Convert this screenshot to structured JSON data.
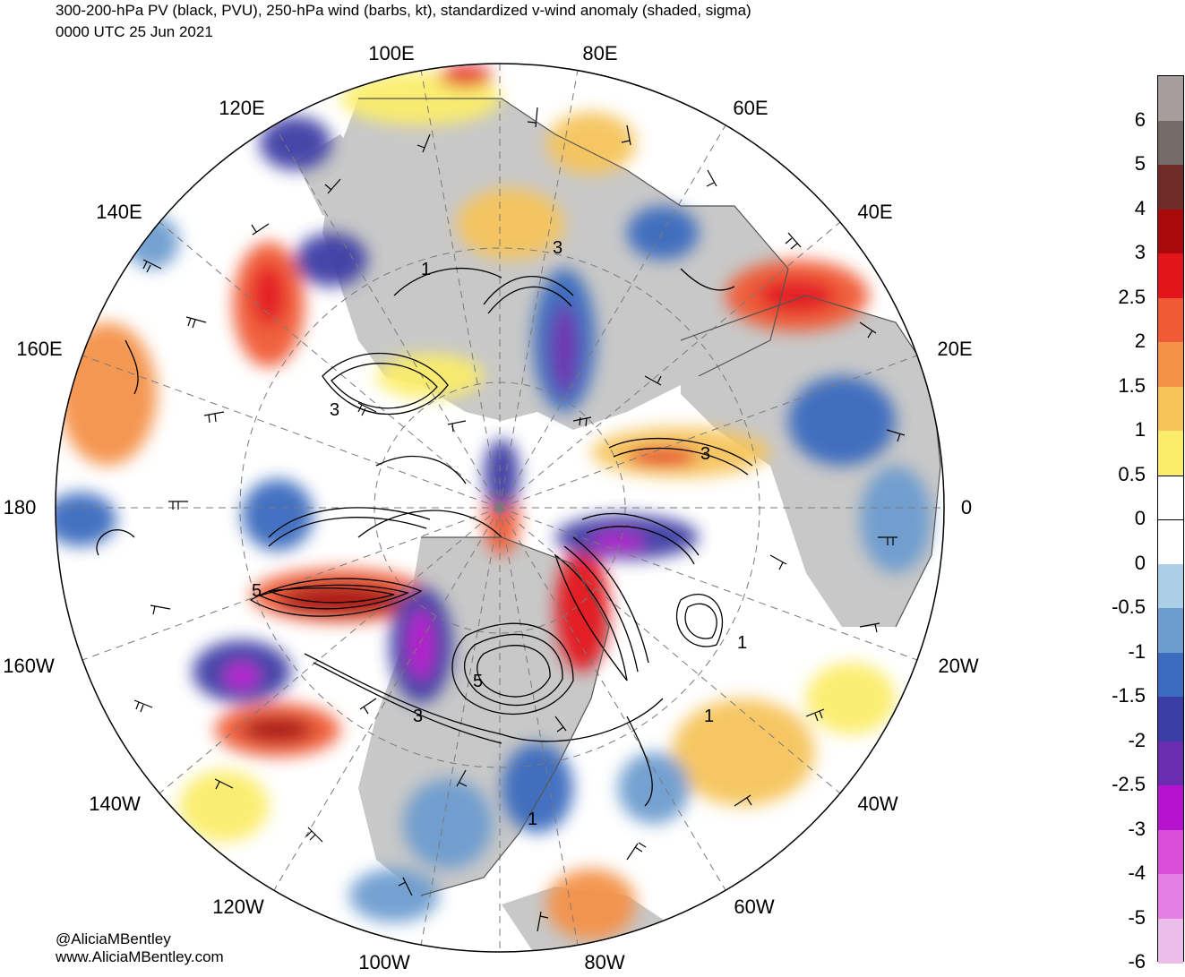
{
  "title": {
    "line1": "300-200-hPa PV (black, PVU), 250-hPa wind (barbs, kt), standardized v-wind anomaly (shaded, sigma)",
    "line2": "0000 UTC 25 Jun 2021"
  },
  "credit": {
    "handle": "@AliciaMBentley",
    "site": "www.AliciaMBentley.com"
  },
  "longitude_labels": {
    "e100": "100E",
    "e80": "80E",
    "e120": "120E",
    "e60": "60E",
    "e140": "140E",
    "e40": "40E",
    "e160": "160E",
    "e20": "20E",
    "l180": "180",
    "l0": "0",
    "w160": "160W",
    "w20": "20W",
    "w140": "140W",
    "w40": "40W",
    "w120": "120W",
    "w60": "60W",
    "w100": "100W",
    "w80": "80W"
  },
  "pv_contour_labels": [
    "1",
    "3",
    "3",
    "3",
    "5",
    "5",
    "3",
    "1",
    "1",
    "1"
  ],
  "colorbar": {
    "ticks": [
      "6",
      "5",
      "4",
      "3",
      "2.5",
      "2",
      "1.5",
      "1",
      "0.5",
      "0",
      "0",
      "-0.5",
      "-1",
      "-1.5",
      "-2",
      "-2.5",
      "-3",
      "-4",
      "-5",
      "-6"
    ],
    "colors": [
      "#a79d9d",
      "#756c6a",
      "#6e2b27",
      "#a8090b",
      "#e3151a",
      "#f05a35",
      "#f49249",
      "#f6c45b",
      "#fbed6a",
      "#ffffff",
      "#ffffff",
      "#abcfe6",
      "#6d9ccf",
      "#3b6bbe",
      "#3c3ca5",
      "#6a2cb0",
      "#b513ce",
      "#da4fd8",
      "#e57ee4",
      "#ebbde9"
    ]
  }
}
